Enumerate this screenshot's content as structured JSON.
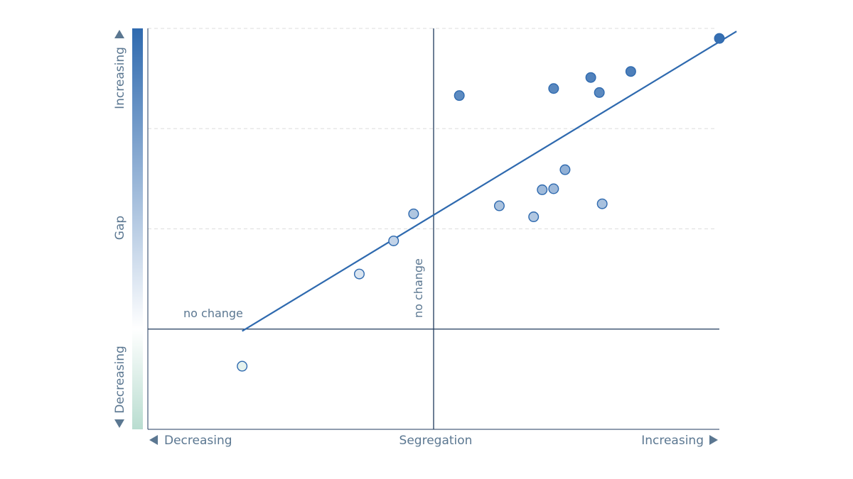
{
  "chart_data": {
    "type": "scatter",
    "xlabel": "Segregation",
    "ylabel": "Gap",
    "x_low_label": "Decreasing",
    "x_high_label": "Increasing",
    "y_low_label": "Decreasing",
    "y_high_label": "Increasing",
    "x_ref_label": "no change",
    "y_ref_label": "no change",
    "xlim": [
      -1.0,
      1.0
    ],
    "ylim": [
      -1.0,
      3.0
    ],
    "grid": "horizontal-dashed",
    "legend": "none",
    "colors": {
      "axis": "#1f3a5c",
      "trend": "#2f6aaf",
      "label": "#5b7791",
      "gap_high": "#2f6aaf",
      "gap_low": "#ffffff",
      "gap_negative": "#b9ddd0",
      "marker_stroke": "#2f6aaf"
    },
    "trend_line": {
      "x": [
        -0.67,
        1.06
      ],
      "y": [
        -0.02,
        2.97
      ]
    },
    "points": [
      {
        "x": -0.67,
        "y": -0.37
      },
      {
        "x": -0.26,
        "y": 0.55
      },
      {
        "x": -0.14,
        "y": 0.88
      },
      {
        "x": -0.07,
        "y": 1.15
      },
      {
        "x": 0.09,
        "y": 2.33
      },
      {
        "x": 0.23,
        "y": 1.23
      },
      {
        "x": 0.35,
        "y": 1.12
      },
      {
        "x": 0.38,
        "y": 1.39
      },
      {
        "x": 0.42,
        "y": 1.4
      },
      {
        "x": 0.46,
        "y": 1.59
      },
      {
        "x": 0.59,
        "y": 1.25
      },
      {
        "x": 0.42,
        "y": 2.4
      },
      {
        "x": 0.55,
        "y": 2.51
      },
      {
        "x": 0.58,
        "y": 2.36
      },
      {
        "x": 0.69,
        "y": 2.57
      },
      {
        "x": 1.0,
        "y": 2.9
      }
    ]
  }
}
